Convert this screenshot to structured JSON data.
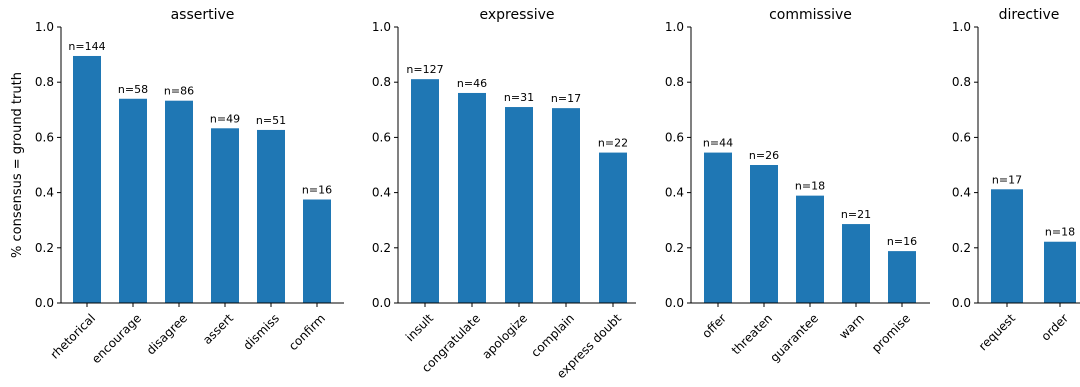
{
  "figure": {
    "ylabel": "% consensus = ground truth",
    "bar_color": "#1f77b4"
  },
  "chart_data": [
    {
      "type": "bar",
      "title": "assertive",
      "categories": [
        "rhetorical",
        "encourage",
        "disagree",
        "assert",
        "dismiss",
        "confirm"
      ],
      "values": [
        0.895,
        0.74,
        0.733,
        0.633,
        0.627,
        0.375
      ],
      "bar_labels": [
        "n=144",
        "n=58",
        "n=86",
        "n=49",
        "n=51",
        "n=16"
      ],
      "ylim": [
        0,
        1.0
      ],
      "yticks": [
        "0.0",
        "0.2",
        "0.4",
        "0.6",
        "0.8",
        "1.0"
      ],
      "ylabel": "% consensus = ground truth"
    },
    {
      "type": "bar",
      "title": "expressive",
      "categories": [
        "insult",
        "congratulate",
        "apologize",
        "complain",
        "express doubt"
      ],
      "values": [
        0.811,
        0.761,
        0.71,
        0.706,
        0.545
      ],
      "bar_labels": [
        "n=127",
        "n=46",
        "n=31",
        "n=17",
        "n=22"
      ],
      "ylim": [
        0,
        1.0
      ],
      "yticks": [
        "0.0",
        "0.2",
        "0.4",
        "0.6",
        "0.8",
        "1.0"
      ]
    },
    {
      "type": "bar",
      "title": "commissive",
      "categories": [
        "offer",
        "threaten",
        "guarantee",
        "warn",
        "promise"
      ],
      "values": [
        0.545,
        0.5,
        0.389,
        0.286,
        0.188
      ],
      "bar_labels": [
        "n=44",
        "n=26",
        "n=18",
        "n=21",
        "n=16"
      ],
      "ylim": [
        0,
        1.0
      ],
      "yticks": [
        "0.0",
        "0.2",
        "0.4",
        "0.6",
        "0.8",
        "1.0"
      ]
    },
    {
      "type": "bar",
      "title": "directive",
      "categories": [
        "request",
        "order"
      ],
      "values": [
        0.412,
        0.222
      ],
      "bar_labels": [
        "n=17",
        "n=18"
      ],
      "ylim": [
        0,
        1.0
      ],
      "yticks": [
        "0.0",
        "0.2",
        "0.4",
        "0.6",
        "0.8",
        "1.0"
      ]
    }
  ]
}
